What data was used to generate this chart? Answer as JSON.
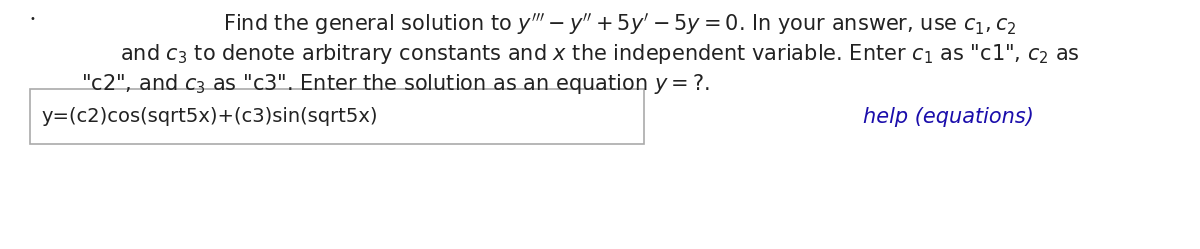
{
  "bg_color": "#ffffff",
  "bullet_char": "•",
  "line1": "Find the general solution to $y''' - y'' + 5y' - 5y = 0$. In your answer, use $c_1, c_2$",
  "line2": "and $c_3$ to denote arbitrary constants and $x$ the independent variable. Enter $c_1$ as \"c1\", $c_2$ as",
  "line3": "\"c2\", and $c_3$ as \"c3\". Enter the solution as an equation $y =?$.",
  "answer_text": "y=(c2)cos(sqrt5x)+(c3)sin(sqrt5x)",
  "help_text": "help (equations)",
  "help_color": "#1a0dab",
  "answer_box_color": "#aaaaaa",
  "text_color": "#222222",
  "font_size_main": 15,
  "font_size_answer": 14,
  "font_size_help": 15
}
